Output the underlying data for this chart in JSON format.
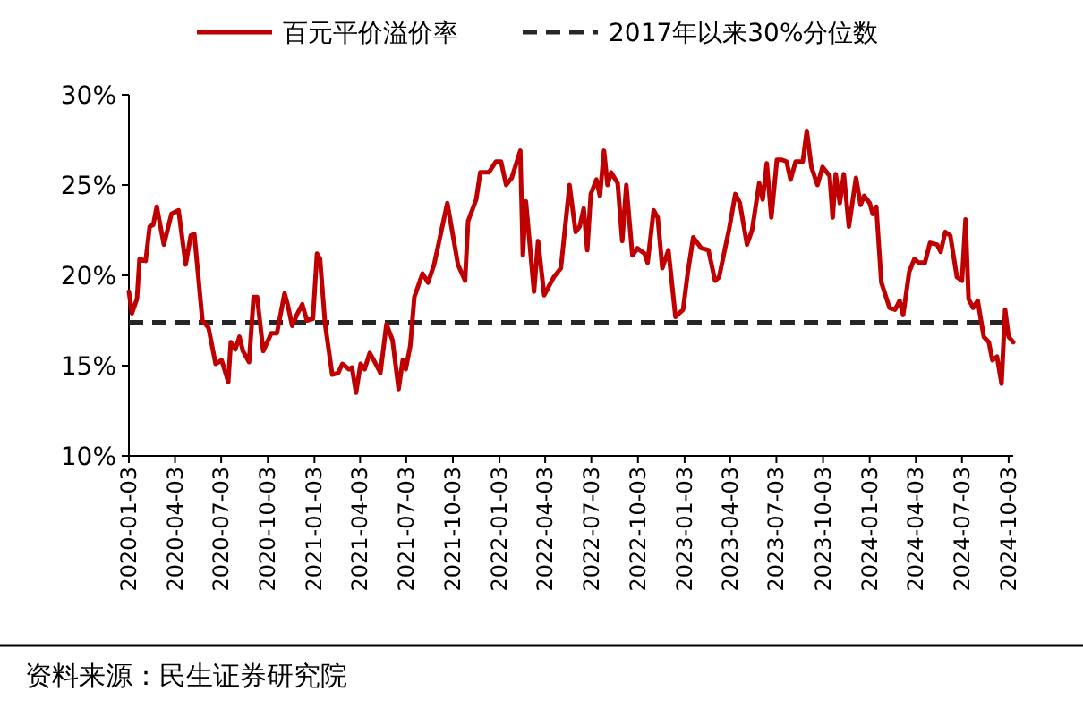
{
  "chart_data": {
    "type": "line",
    "x": [
      "2020-01-03",
      "2020-01-09",
      "2020-01-19",
      "2020-01-24",
      "2020-02-05",
      "2020-02-13",
      "2020-02-20",
      "2020-02-27",
      "2020-03-12",
      "2020-03-27",
      "2020-04-10",
      "2020-04-24",
      "2020-05-04",
      "2020-05-11",
      "2020-05-27",
      "2020-06-08",
      "2020-06-22",
      "2020-07-04",
      "2020-07-17",
      "2020-07-22",
      "2020-07-31",
      "2020-08-08",
      "2020-08-15",
      "2020-08-27",
      "2020-09-05",
      "2020-09-12",
      "2020-09-24",
      "2020-10-10",
      "2020-10-21",
      "2020-11-05",
      "2020-11-11",
      "2020-11-20",
      "2020-11-29",
      "2020-12-10",
      "2020-12-19",
      "2020-12-31",
      "2021-01-08",
      "2021-01-14",
      "2021-01-24",
      "2021-02-07",
      "2021-02-19",
      "2021-02-27",
      "2021-03-12",
      "2021-03-18",
      "2021-03-26",
      "2021-04-04",
      "2021-04-12",
      "2021-04-22",
      "2021-04-30",
      "2021-05-13",
      "2021-05-25",
      "2021-06-06",
      "2021-06-18",
      "2021-06-26",
      "2021-07-02",
      "2021-07-11",
      "2021-07-19",
      "2021-08-04",
      "2021-08-15",
      "2021-08-27",
      "2021-09-22",
      "2021-10-13",
      "2021-10-27",
      "2021-11-02",
      "2021-11-18",
      "2021-11-26",
      "2021-12-13",
      "2021-12-27",
      "2022-01-06",
      "2022-01-16",
      "2022-01-27",
      "2022-02-13",
      "2022-02-18",
      "2022-02-24",
      "2022-03-12",
      "2022-03-20",
      "2022-04-01",
      "2022-04-20",
      "2022-05-04",
      "2022-05-21",
      "2022-06-02",
      "2022-06-10",
      "2022-06-18",
      "2022-06-25",
      "2022-07-02",
      "2022-07-13",
      "2022-07-20",
      "2022-07-28",
      "2022-08-04",
      "2022-08-11",
      "2022-08-24",
      "2022-09-02",
      "2022-09-10",
      "2022-09-22",
      "2022-10-02",
      "2022-10-16",
      "2022-10-22",
      "2022-11-03",
      "2022-11-11",
      "2022-11-20",
      "2022-12-02",
      "2022-12-16",
      "2022-12-31",
      "2023-01-09",
      "2023-01-20",
      "2023-02-05",
      "2023-02-19",
      "2023-03-04",
      "2023-03-12",
      "2023-04-01",
      "2023-04-13",
      "2023-04-22",
      "2023-05-06",
      "2023-05-16",
      "2023-05-30",
      "2023-06-06",
      "2023-06-14",
      "2023-06-23",
      "2023-07-04",
      "2023-07-14",
      "2023-07-23",
      "2023-07-31",
      "2023-08-10",
      "2023-08-24",
      "2023-09-01",
      "2023-09-10",
      "2023-09-22",
      "2023-10-02",
      "2023-10-16",
      "2023-10-22",
      "2023-10-28",
      "2023-11-05",
      "2023-11-13",
      "2023-11-23",
      "2023-12-07",
      "2023-12-16",
      "2023-12-23",
      "2024-01-03",
      "2024-01-09",
      "2024-01-16",
      "2024-01-26",
      "2024-02-11",
      "2024-02-22",
      "2024-03-02",
      "2024-03-09",
      "2024-03-21",
      "2024-03-31",
      "2024-04-09",
      "2024-04-21",
      "2024-05-01",
      "2024-05-15",
      "2024-05-22",
      "2024-05-31",
      "2024-06-10",
      "2024-06-23",
      "2024-07-03",
      "2024-07-10",
      "2024-07-16",
      "2024-07-25",
      "2024-08-03",
      "2024-08-15",
      "2024-08-25",
      "2024-09-01",
      "2024-09-10",
      "2024-09-19",
      "2024-09-26",
      "2024-10-03",
      "2024-10-12"
    ],
    "series": [
      {
        "name": "百元平价溢价率",
        "color": "#c00000",
        "values": [
          19.1,
          17.9,
          18.7,
          20.9,
          20.8,
          22.7,
          22.8,
          23.8,
          21.7,
          23.4,
          23.6,
          20.6,
          22.2,
          22.3,
          17.5,
          17.1,
          15.1,
          15.3,
          14.1,
          16.3,
          15.9,
          16.6,
          15.8,
          15.2,
          18.8,
          18.8,
          15.8,
          16.8,
          16.8,
          19.0,
          18.4,
          17.2,
          17.8,
          18.4,
          17.5,
          17.6,
          21.2,
          20.9,
          17.3,
          14.5,
          14.6,
          15.1,
          14.8,
          14.9,
          13.5,
          15.1,
          14.8,
          15.7,
          15.3,
          14.6,
          17.3,
          16.4,
          13.7,
          15.3,
          14.8,
          16.1,
          18.8,
          20.1,
          19.6,
          20.6,
          24.0,
          20.6,
          19.7,
          23.0,
          24.2,
          25.7,
          25.7,
          26.3,
          26.3,
          25.0,
          25.4,
          26.9,
          21.1,
          24.1,
          19.1,
          21.9,
          18.9,
          19.9,
          20.4,
          25.0,
          22.4,
          22.7,
          23.7,
          21.4,
          24.5,
          25.3,
          24.4,
          26.9,
          25.0,
          25.7,
          25.1,
          21.9,
          25.0,
          21.1,
          21.5,
          21.2,
          20.7,
          23.6,
          23.2,
          20.4,
          21.4,
          17.7,
          18.1,
          20.1,
          22.1,
          21.5,
          21.4,
          19.7,
          19.9,
          22.6,
          24.5,
          24.0,
          21.7,
          22.5,
          25.1,
          24.2,
          26.2,
          23.2,
          26.4,
          26.4,
          26.3,
          25.3,
          26.3,
          26.3,
          28.0,
          26.0,
          25.0,
          26.0,
          25.5,
          23.2,
          25.6,
          24.0,
          25.6,
          22.7,
          25.4,
          23.9,
          24.4,
          24.0,
          23.4,
          23.8,
          19.6,
          18.2,
          18.1,
          18.6,
          17.8,
          20.2,
          20.9,
          20.7,
          20.7,
          21.8,
          21.7,
          21.3,
          22.4,
          22.2,
          19.9,
          19.7,
          23.1,
          18.7,
          18.2,
          18.6,
          16.6,
          16.3,
          15.3,
          15.5,
          14.0,
          18.1,
          16.6,
          16.3
        ]
      }
    ],
    "ref_lines": [
      {
        "axis": "y",
        "value": 17.4,
        "label": "2017年以来30%分位数",
        "color": "#262626",
        "line_style": "dashed"
      }
    ],
    "xlim": [
      "2020-01-03",
      "2024-10-12"
    ],
    "xticks": [
      "2020-01-03",
      "2020-04-03",
      "2020-07-03",
      "2020-10-03",
      "2021-01-03",
      "2021-04-03",
      "2021-07-03",
      "2021-10-03",
      "2022-01-03",
      "2022-04-03",
      "2022-07-03",
      "2022-10-03",
      "2023-01-03",
      "2023-04-03",
      "2023-07-03",
      "2023-10-03",
      "2024-01-03",
      "2024-04-03",
      "2024-07-03",
      "2024-10-03"
    ],
    "ylim": [
      10,
      30
    ],
    "yticks": [
      {
        "value": 10,
        "label": "10%"
      },
      {
        "value": 15,
        "label": "15%"
      },
      {
        "value": 20,
        "label": "20%"
      },
      {
        "value": 25,
        "label": "25%"
      },
      {
        "value": 30,
        "label": "30%"
      }
    ],
    "legend": "top",
    "grid": false,
    "annotations": [
      "资料来源：民生证券研究院"
    ]
  }
}
